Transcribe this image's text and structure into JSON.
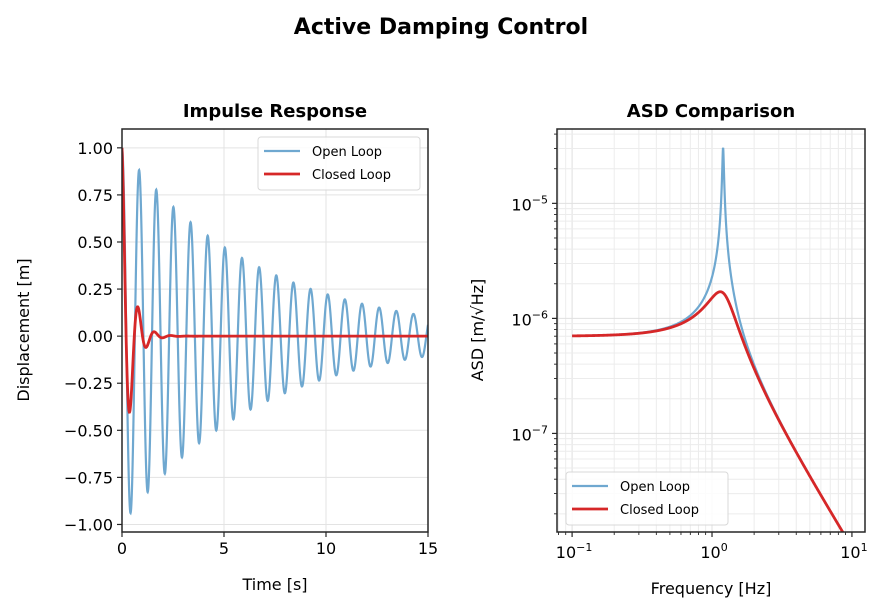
{
  "figure": {
    "suptitle": "Active Damping Control"
  },
  "chart_data": [
    {
      "type": "line",
      "title": "Impulse Response",
      "xlabel": "Time [s]",
      "ylabel": "Displacement [m]",
      "xlim": [
        0,
        15
      ],
      "ylim": [
        -1.04,
        1.1
      ],
      "xscale": "linear",
      "yscale": "linear",
      "xticks": [
        0,
        5,
        10,
        15
      ],
      "xtick_labels": [
        "0",
        "5",
        "10",
        "15"
      ],
      "yticks": [
        1.0,
        0.75,
        0.5,
        0.25,
        0.0,
        -0.25,
        -0.5,
        -0.75,
        -1.0
      ],
      "ytick_labels": [
        "1.00",
        "0.75",
        "0.50",
        "0.25",
        "0.00",
        "−0.25",
        "−0.50",
        "−0.75",
        "−1.00"
      ],
      "grid": true,
      "legend": "top-right",
      "series": [
        {
          "name": "Open Loop",
          "color": "#6fa8d0",
          "model": "damped-cosine",
          "initial_value": 1.0,
          "natural_frequency_hz": 1.19,
          "damping_ratio": 0.02,
          "observed_extrema": [
            {
              "t": 0.0,
              "value": 1.0
            },
            {
              "t": 0.42,
              "value": -0.94
            },
            {
              "t": 0.84,
              "value": 0.88
            },
            {
              "t": 1.26,
              "value": -0.83
            },
            {
              "t": 1.68,
              "value": 0.78
            },
            {
              "t": 2.52,
              "value": 0.69
            },
            {
              "t": 3.36,
              "value": 0.61
            }
          ]
        },
        {
          "name": "Closed Loop",
          "color": "#d62728",
          "model": "damped-cosine",
          "initial_value": 1.0,
          "natural_frequency_hz": 1.3,
          "damping_ratio": 0.29,
          "observed_extrema": [
            {
              "t": 0.0,
              "value": 1.0
            },
            {
              "t": 0.38,
              "value": -0.41
            },
            {
              "t": 0.78,
              "value": 0.16
            },
            {
              "t": 1.22,
              "value": -0.06
            },
            {
              "t": 1.62,
              "value": 0.02
            }
          ]
        }
      ]
    },
    {
      "type": "line",
      "title": "ASD Comparison",
      "xlabel": "Frequency [Hz]",
      "ylabel": "ASD [m/√Hz]",
      "xlim": [
        0.078,
        12.4
      ],
      "ylim": [
        1.39e-08,
        4.43e-05
      ],
      "xscale": "log",
      "yscale": "log",
      "xticks": [
        0.1,
        1,
        10
      ],
      "xtick_labels": [
        [
          "10",
          "−1"
        ],
        [
          "10",
          "0"
        ],
        [
          "10",
          "1"
        ]
      ],
      "yticks": [
        1e-05,
        1e-06,
        1e-07
      ],
      "ytick_labels": [
        [
          "10",
          "−5"
        ],
        [
          "10",
          "−6"
        ],
        [
          "10",
          "−7"
        ]
      ],
      "grid": "both-major-minor",
      "legend": "lower-left",
      "freq_range": [
        0.1,
        10
      ],
      "series": [
        {
          "name": "Open Loop",
          "color": "#6fa8d0",
          "model": "second-order-magnitude",
          "dc_value": 7e-07,
          "natural_frequency_hz": 1.2,
          "damping_ratio": 0.0115,
          "observed_points": [
            {
              "f": 0.1,
              "asd": 7e-07
            },
            {
              "f": 1.2,
              "asd": 3.05e-05
            },
            {
              "f": 10,
              "asd": 2.03e-08
            }
          ]
        },
        {
          "name": "Closed Loop",
          "color": "#d62728",
          "model": "second-order-magnitude",
          "dc_value": 7e-07,
          "natural_frequency_hz": 1.2,
          "damping_ratio": 0.21,
          "observed_points": [
            {
              "f": 0.1,
              "asd": 7e-07
            },
            {
              "f": 1.13,
              "asd": 1.78e-06
            },
            {
              "f": 10,
              "asd": 2.03e-08
            }
          ]
        }
      ]
    }
  ]
}
